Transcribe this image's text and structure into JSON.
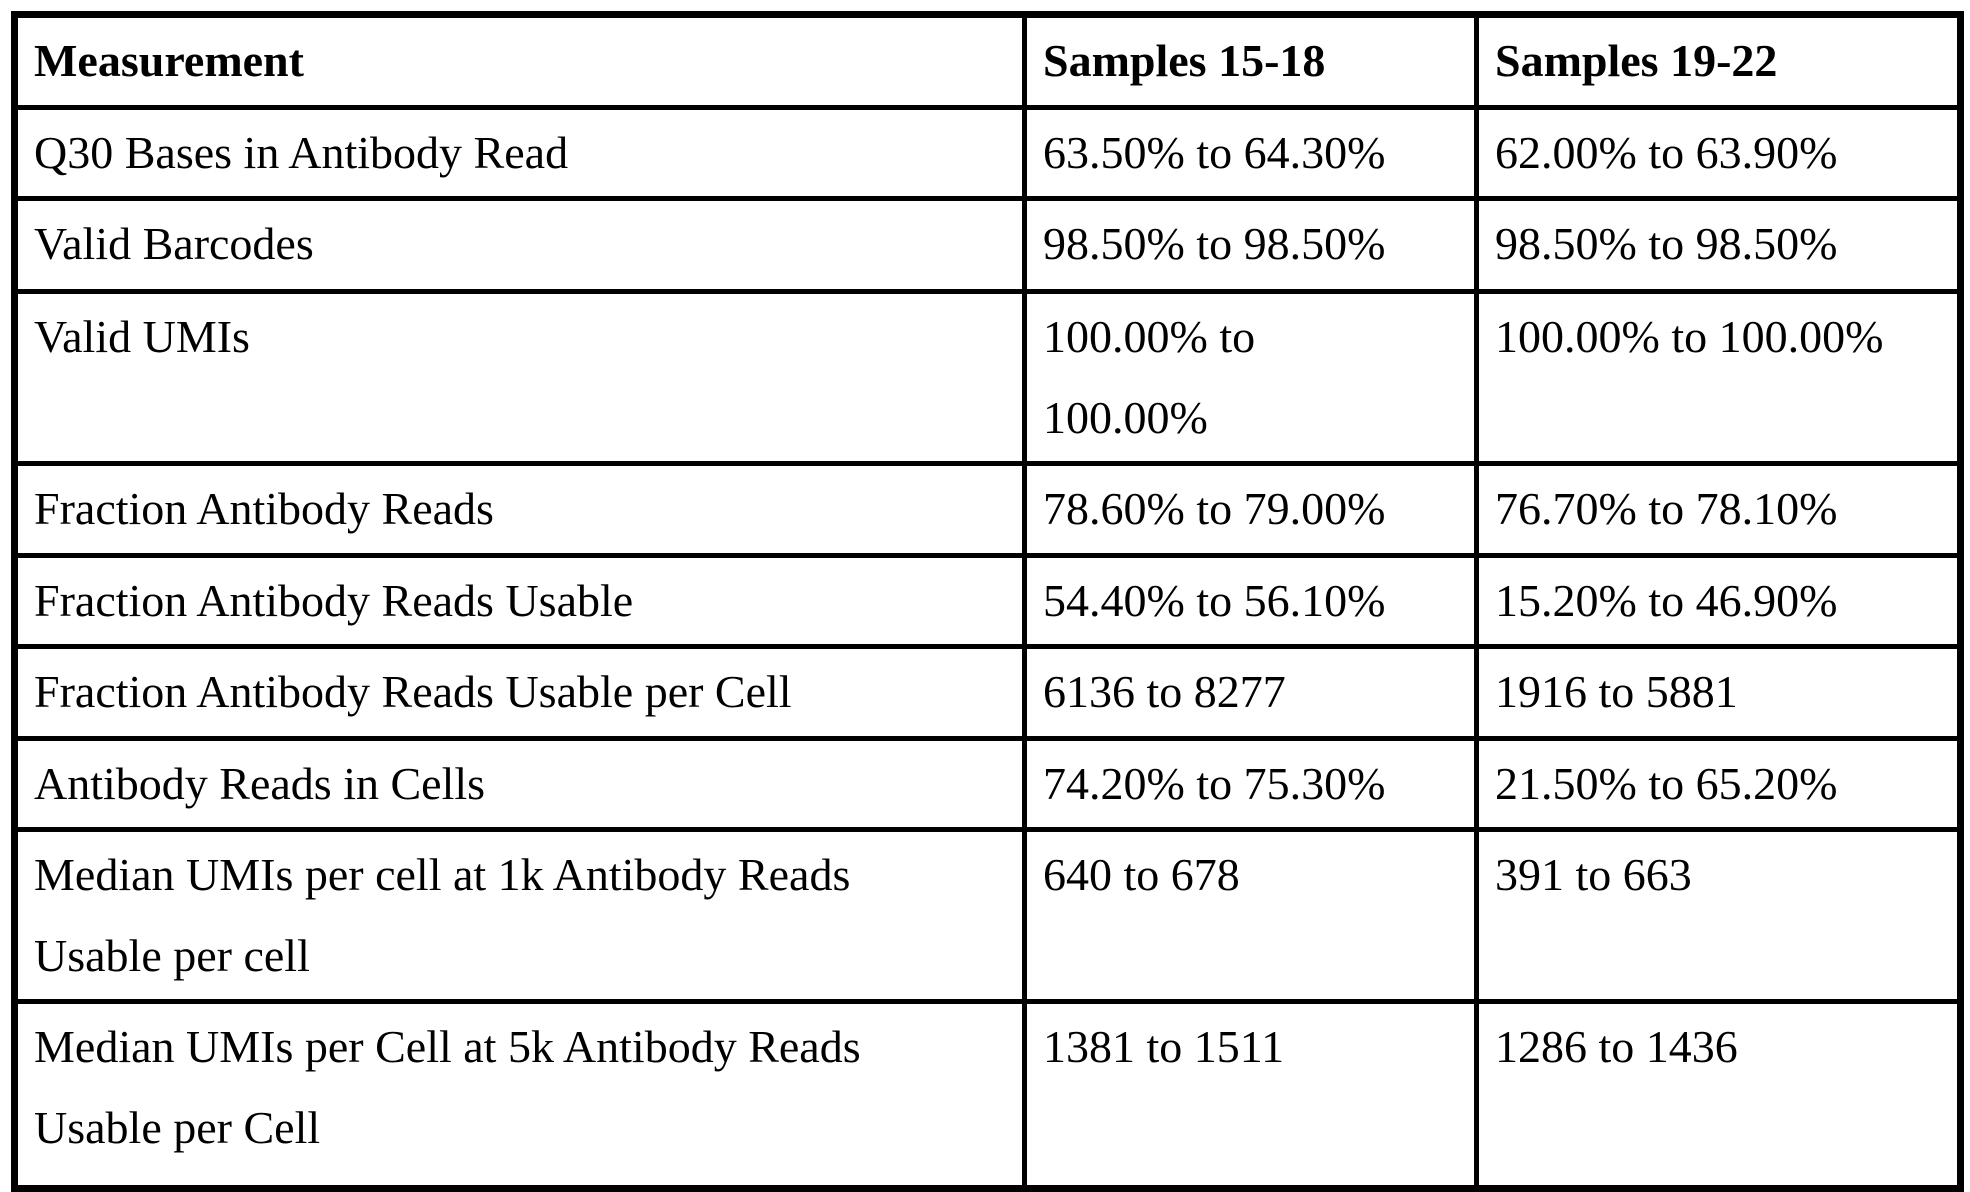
{
  "page": {
    "background_color": "#ffffff",
    "text_color": "#000000",
    "border_color": "#000000"
  },
  "table": {
    "columns": [
      {
        "key": "measurement",
        "label": "Measurement"
      },
      {
        "key": "samples_15_18",
        "label": "Samples 15-18"
      },
      {
        "key": "samples_19_22",
        "label": "Samples 19-22"
      }
    ],
    "rows": [
      {
        "measurement": "Q30 Bases in Antibody Read",
        "samples_15_18": "63.50% to 64.30%",
        "samples_19_22": "62.00% to 63.90%"
      },
      {
        "measurement": "Valid Barcodes",
        "samples_15_18": "98.50% to 98.50%",
        "samples_19_22": "98.50% to 98.50%"
      },
      {
        "measurement": "Valid UMIs",
        "samples_15_18": "100.00% to\n100.00%",
        "samples_19_22": "100.00% to 100.00%"
      },
      {
        "measurement": "Fraction Antibody Reads",
        "samples_15_18": "78.60% to 79.00%",
        "samples_19_22": "76.70% to 78.10%"
      },
      {
        "measurement": "Fraction Antibody Reads Usable",
        "samples_15_18": "54.40% to 56.10%",
        "samples_19_22": "15.20% to 46.90%"
      },
      {
        "measurement": "Fraction Antibody Reads Usable per Cell",
        "samples_15_18": "6136 to 8277",
        "samples_19_22": "1916 to 5881"
      },
      {
        "measurement": "Antibody Reads in Cells",
        "samples_15_18": "74.20% to 75.30%",
        "samples_19_22": "21.50% to 65.20%"
      },
      {
        "measurement": "Median UMIs per cell at 1k Antibody Reads\nUsable per cell",
        "samples_15_18": "640 to 678",
        "samples_19_22": "391 to 663"
      },
      {
        "measurement": "Median UMIs per Cell at 5k Antibody Reads\nUsable per Cell",
        "samples_15_18": "1381 to 1511",
        "samples_19_22": "1286 to 1436"
      }
    ]
  }
}
